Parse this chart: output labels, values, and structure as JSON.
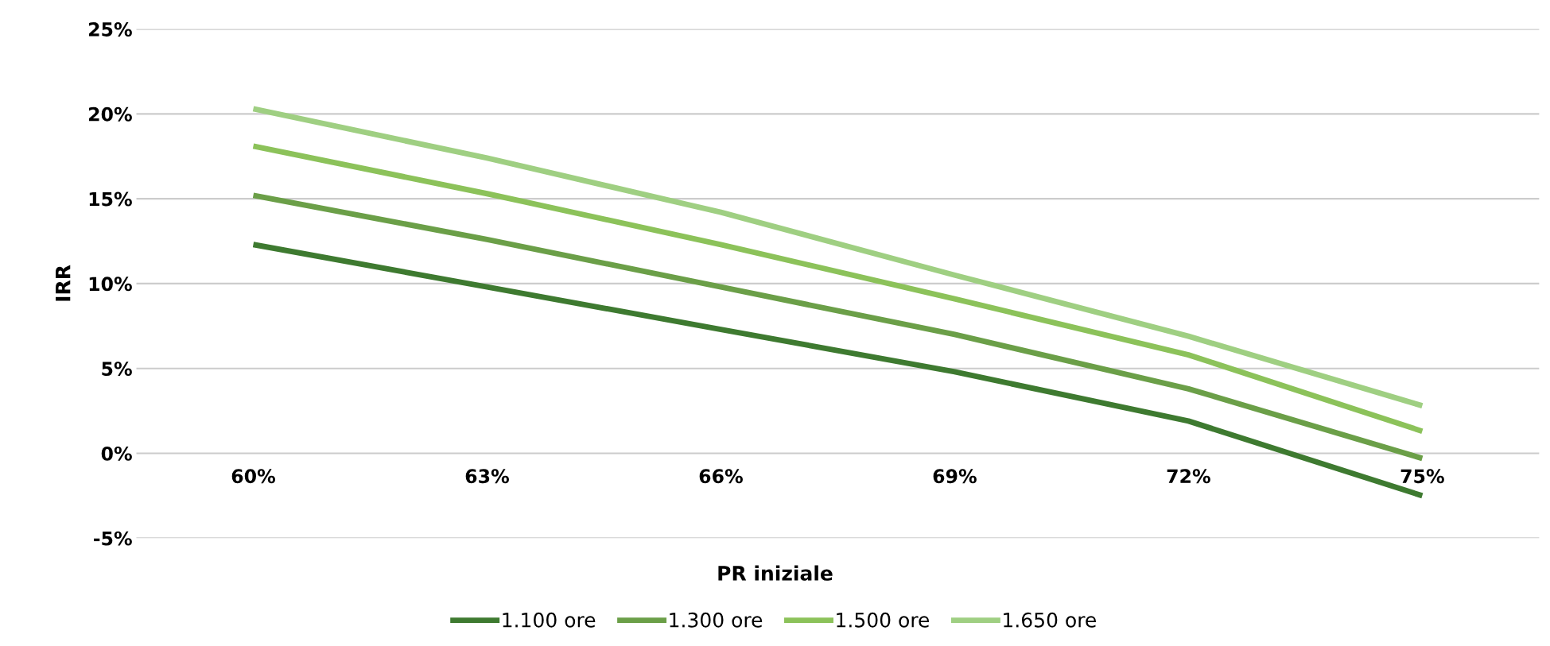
{
  "chart_data": {
    "type": "line",
    "xlabel": "PR iniziale",
    "ylabel": "IRR",
    "categories": [
      "60%",
      "63%",
      "66%",
      "69%",
      "72%",
      "75%"
    ],
    "series": [
      {
        "name": "1.100 ore",
        "color": "#3e7a30",
        "values": [
          12.3,
          9.8,
          7.3,
          4.8,
          1.9,
          -2.5
        ]
      },
      {
        "name": "1.300 ore",
        "color": "#6b9f48",
        "values": [
          15.2,
          12.6,
          9.8,
          7.0,
          3.8,
          -0.3
        ]
      },
      {
        "name": "1.500 ore",
        "color": "#8cc25a",
        "values": [
          18.1,
          15.3,
          12.3,
          9.1,
          5.8,
          1.3
        ]
      },
      {
        "name": "1.650 ore",
        "color": "#9fcf82",
        "values": [
          20.3,
          17.4,
          14.2,
          10.5,
          6.9,
          2.8
        ]
      }
    ],
    "ylim": [
      -5,
      25
    ],
    "yticks": [
      {
        "value": -5,
        "label": "-5%"
      },
      {
        "value": 0,
        "label": "0%"
      },
      {
        "value": 5,
        "label": "5%"
      },
      {
        "value": 10,
        "label": "10%"
      },
      {
        "value": 15,
        "label": "15%"
      },
      {
        "value": 20,
        "label": "20%"
      },
      {
        "value": 25,
        "label": "25%"
      }
    ],
    "grid": "y",
    "legend": "bottom",
    "marker": "none",
    "line_style": "solid"
  }
}
